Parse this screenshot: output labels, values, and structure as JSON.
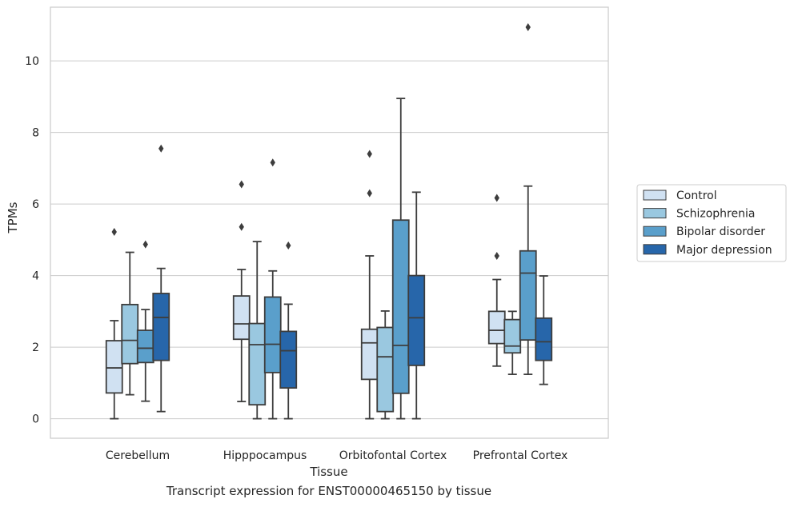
{
  "caption": "Transcript expression for ENST00000465150 by tissue",
  "chart_data": {
    "type": "box",
    "xlabel": "Tissue",
    "ylabel": "TPMs",
    "ylim": [
      -0.5,
      11.5
    ],
    "yticks": [
      0,
      2,
      4,
      6,
      8,
      10
    ],
    "grid": true,
    "legend_position": "right",
    "categories": [
      "Cerebellum",
      "Hipppocampus",
      "Orbitofontal Cortex",
      "Prefrontal Cortex"
    ],
    "series": [
      {
        "name": "Control",
        "color": "#d0e1f2",
        "boxes": [
          {
            "whisker_low": 0.0,
            "q1": 0.72,
            "median": 1.42,
            "q3": 2.18,
            "whisker_high": 2.74,
            "outliers": [
              5.22
            ]
          },
          {
            "whisker_low": 0.48,
            "q1": 2.22,
            "median": 2.65,
            "q3": 3.43,
            "whisker_high": 4.17,
            "outliers": [
              5.36,
              6.55
            ]
          },
          {
            "whisker_low": 0.0,
            "q1": 1.1,
            "median": 2.12,
            "q3": 2.5,
            "whisker_high": 4.55,
            "outliers": [
              6.3,
              7.4
            ]
          },
          {
            "whisker_low": 1.47,
            "q1": 2.1,
            "median": 2.47,
            "q3": 3.0,
            "whisker_high": 3.89,
            "outliers": [
              4.55,
              6.17
            ]
          }
        ]
      },
      {
        "name": "Schizophrenia",
        "color": "#9ac8e0",
        "boxes": [
          {
            "whisker_low": 0.67,
            "q1": 1.54,
            "median": 2.19,
            "q3": 3.19,
            "whisker_high": 4.65,
            "outliers": []
          },
          {
            "whisker_low": 0.0,
            "q1": 0.39,
            "median": 2.07,
            "q3": 2.66,
            "whisker_high": 4.95,
            "outliers": []
          },
          {
            "whisker_low": 0.0,
            "q1": 0.2,
            "median": 1.73,
            "q3": 2.55,
            "whisker_high": 3.01,
            "outliers": []
          },
          {
            "whisker_low": 1.24,
            "q1": 1.84,
            "median": 2.03,
            "q3": 2.77,
            "whisker_high": 3.0,
            "outliers": []
          }
        ]
      },
      {
        "name": "Bipolar disorder",
        "color": "#5a9fcb",
        "boxes": [
          {
            "whisker_low": 0.49,
            "q1": 1.57,
            "median": 1.97,
            "q3": 2.47,
            "whisker_high": 3.05,
            "outliers": [
              4.87
            ]
          },
          {
            "whisker_low": 0.0,
            "q1": 1.29,
            "median": 2.08,
            "q3": 3.4,
            "whisker_high": 4.13,
            "outliers": [
              7.16
            ]
          },
          {
            "whisker_low": 0.0,
            "q1": 0.71,
            "median": 2.05,
            "q3": 5.55,
            "whisker_high": 8.95,
            "outliers": []
          },
          {
            "whisker_low": 1.24,
            "q1": 2.2,
            "median": 4.07,
            "q3": 4.69,
            "whisker_high": 6.5,
            "outliers": [
              10.94
            ]
          }
        ]
      },
      {
        "name": "Major depression",
        "color": "#2766aa",
        "boxes": [
          {
            "whisker_low": 0.2,
            "q1": 1.63,
            "median": 2.83,
            "q3": 3.5,
            "whisker_high": 4.2,
            "outliers": [
              7.55
            ]
          },
          {
            "whisker_low": 0.0,
            "q1": 0.86,
            "median": 1.9,
            "q3": 2.44,
            "whisker_high": 3.2,
            "outliers": [
              4.84
            ]
          },
          {
            "whisker_low": 0.0,
            "q1": 1.49,
            "median": 2.82,
            "q3": 4.0,
            "whisker_high": 6.33,
            "outliers": []
          },
          {
            "whisker_low": 0.96,
            "q1": 1.63,
            "median": 2.15,
            "q3": 2.81,
            "whisker_high": 3.99,
            "outliers": []
          }
        ]
      }
    ]
  }
}
